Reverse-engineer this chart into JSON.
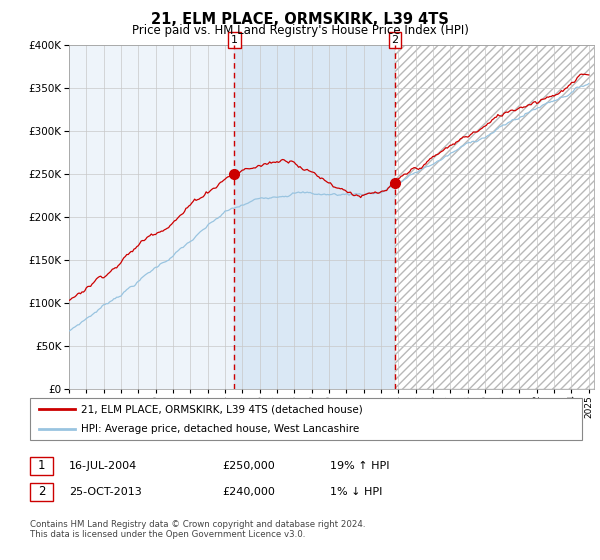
{
  "title": "21, ELM PLACE, ORMSKIRK, L39 4TS",
  "subtitle": "Price paid vs. HM Land Registry's House Price Index (HPI)",
  "x_start_year": 1995,
  "x_end_year": 2025,
  "y_min": 0,
  "y_max": 400000,
  "y_ticks": [
    0,
    50000,
    100000,
    150000,
    200000,
    250000,
    300000,
    350000,
    400000
  ],
  "sale1_date": 2004.54,
  "sale1_price": 250000,
  "sale2_date": 2013.82,
  "sale2_price": 240000,
  "hpi_color": "#99c4e0",
  "price_color": "#cc0000",
  "shade_color": "#dae8f5",
  "grid_color": "#c8c8c8",
  "bg_color": "#eef4fa",
  "legend_entry1": "21, ELM PLACE, ORMSKIRK, L39 4TS (detached house)",
  "legend_entry2": "HPI: Average price, detached house, West Lancashire",
  "table_row1": [
    "1",
    "16-JUL-2004",
    "£250,000",
    "19% ↑ HPI"
  ],
  "table_row2": [
    "2",
    "25-OCT-2013",
    "£240,000",
    "1% ↓ HPI"
  ],
  "footnote": "Contains HM Land Registry data © Crown copyright and database right 2024.\nThis data is licensed under the Open Government Licence v3.0."
}
